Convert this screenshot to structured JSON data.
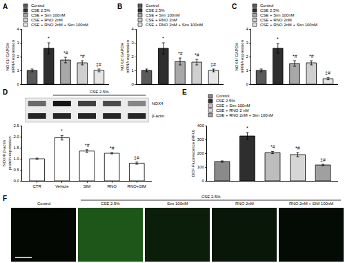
{
  "chart_data": [
    {
      "panel": "A",
      "type": "bar",
      "y_label": [
        "NOX1/ GAPDH",
        "mRNA expression"
      ],
      "categories": [
        "Control",
        "CSE 2.5%",
        "CSE + Sim 100nM",
        "CSE + RNO 2nM",
        "CSE + RNO 2nM + Sim 100nM"
      ],
      "values": [
        1.0,
        2.6,
        1.75,
        1.55,
        1.0
      ],
      "errors": [
        0.1,
        0.4,
        0.2,
        0.15,
        0.1
      ],
      "marks": [
        null,
        "*",
        "*#",
        "*#",
        "‡#"
      ],
      "colors": [
        "#5a5a5a",
        "#2e2e2e",
        "#a8a8a8",
        "#cfcfcf",
        "#e6e6e6"
      ],
      "ylim": [
        0,
        4
      ],
      "yticks": [
        0,
        1,
        2,
        3,
        4
      ],
      "tick_labels": "y",
      "legend": "top"
    },
    {
      "panel": "B",
      "type": "bar",
      "y_label": [
        "NOX2/ GAPDH",
        "mRNA expression"
      ],
      "categories": [
        "Control",
        "CSE 2.5%",
        "CSE + Sim 100nM",
        "CSE + RNO 2nM",
        "CSE + RNO 2nM + Sim 100nM"
      ],
      "values": [
        1.0,
        2.6,
        1.65,
        1.6,
        1.0
      ],
      "errors": [
        0.1,
        0.4,
        0.25,
        0.2,
        0.1
      ],
      "marks": [
        null,
        "*",
        "*#",
        "*#",
        "‡#"
      ],
      "colors": [
        "#5a5a5a",
        "#2e2e2e",
        "#a8a8a8",
        "#cfcfcf",
        "#e6e6e6"
      ],
      "ylim": [
        0,
        4
      ],
      "yticks": [
        0,
        1,
        2,
        3,
        4
      ],
      "tick_labels": "y",
      "legend": "top"
    },
    {
      "panel": "C",
      "type": "bar",
      "y_label": [
        "NOX4/ GAPDH",
        "mRNA expression"
      ],
      "categories": [
        "Control",
        "CSE 2.5%",
        "CSE + Sim 100nM",
        "CSE + RNO 2nM",
        "CSE + RNO 2nM + Sim 100nM"
      ],
      "values": [
        1.0,
        2.6,
        1.5,
        1.55,
        0.4
      ],
      "errors": [
        0.1,
        0.35,
        0.2,
        0.15,
        0.08
      ],
      "marks": [
        null,
        "*",
        "*#",
        "*#",
        "‡#"
      ],
      "colors": [
        "#5a5a5a",
        "#2e2e2e",
        "#a8a8a8",
        "#cfcfcf",
        "#e6e6e6"
      ],
      "ylim": [
        0,
        4
      ],
      "yticks": [
        0,
        1,
        2,
        3,
        4
      ],
      "tick_labels": "y",
      "legend": "top"
    },
    {
      "panel": "D",
      "type": "bar",
      "y_label": [
        "NOX4/ β-actin",
        "protein expression"
      ],
      "categories": [
        "CTR",
        "Vehicle",
        "SIM",
        "RNO",
        "RNO+SIM"
      ],
      "values": [
        1.0,
        1.95,
        1.35,
        1.25,
        0.8
      ],
      "errors": [
        0.03,
        0.1,
        0.06,
        0.03,
        0.05
      ],
      "marks": [
        null,
        "*",
        "*#",
        "*#",
        "‡#"
      ],
      "colors": [
        "#ffffff",
        "#ffffff",
        "#ffffff",
        "#ffffff",
        "#ffffff"
      ],
      "ylim": [
        0,
        2.5
      ],
      "yticks": [
        {
          "value": 0,
          "label": "0.0"
        },
        {
          "value": 0.5,
          "label": "0.5"
        },
        {
          "value": 1,
          "label": "1.0"
        },
        {
          "value": 1.5,
          "label": "1.5"
        },
        {
          "value": 2,
          "label": "2.0"
        },
        {
          "value": 2.5,
          "label": "2.5"
        }
      ],
      "group_label": "CSE 2.5%",
      "blot_labels": [
        "NOX4",
        "β-actin"
      ]
    },
    {
      "panel": "E",
      "type": "bar",
      "y_label": [
        "DCF Fluorescence (RFU)"
      ],
      "categories": [
        "Control",
        "CSE 2.5%",
        "CSE + Sim 100nM",
        "CSE + RNO 2 nM",
        "CSE + RNO 2nM + Sim 100nM"
      ],
      "values": [
        140,
        325,
        205,
        190,
        115
      ],
      "errors": [
        5,
        25,
        8,
        15,
        5
      ],
      "marks": [
        null,
        "*",
        "*#",
        "*#",
        "‡#"
      ],
      "colors": [
        "#8a8a8a",
        "#2e2e2e",
        "#bdbdbd",
        "#d6d6d6",
        "#a0a0a0"
      ],
      "ylim": [
        0,
        400
      ],
      "yticks": [
        0,
        100,
        200,
        300,
        400
      ],
      "tick_labels": "y",
      "legend": "top"
    }
  ],
  "panel_f": {
    "panel": "F",
    "group_label": "CSE 2.5%",
    "images": [
      "Control",
      "CSE 2.5%",
      "Sim 100nM",
      "RNO 2nM",
      "RNO 2nM + SIM 100nM"
    ]
  }
}
